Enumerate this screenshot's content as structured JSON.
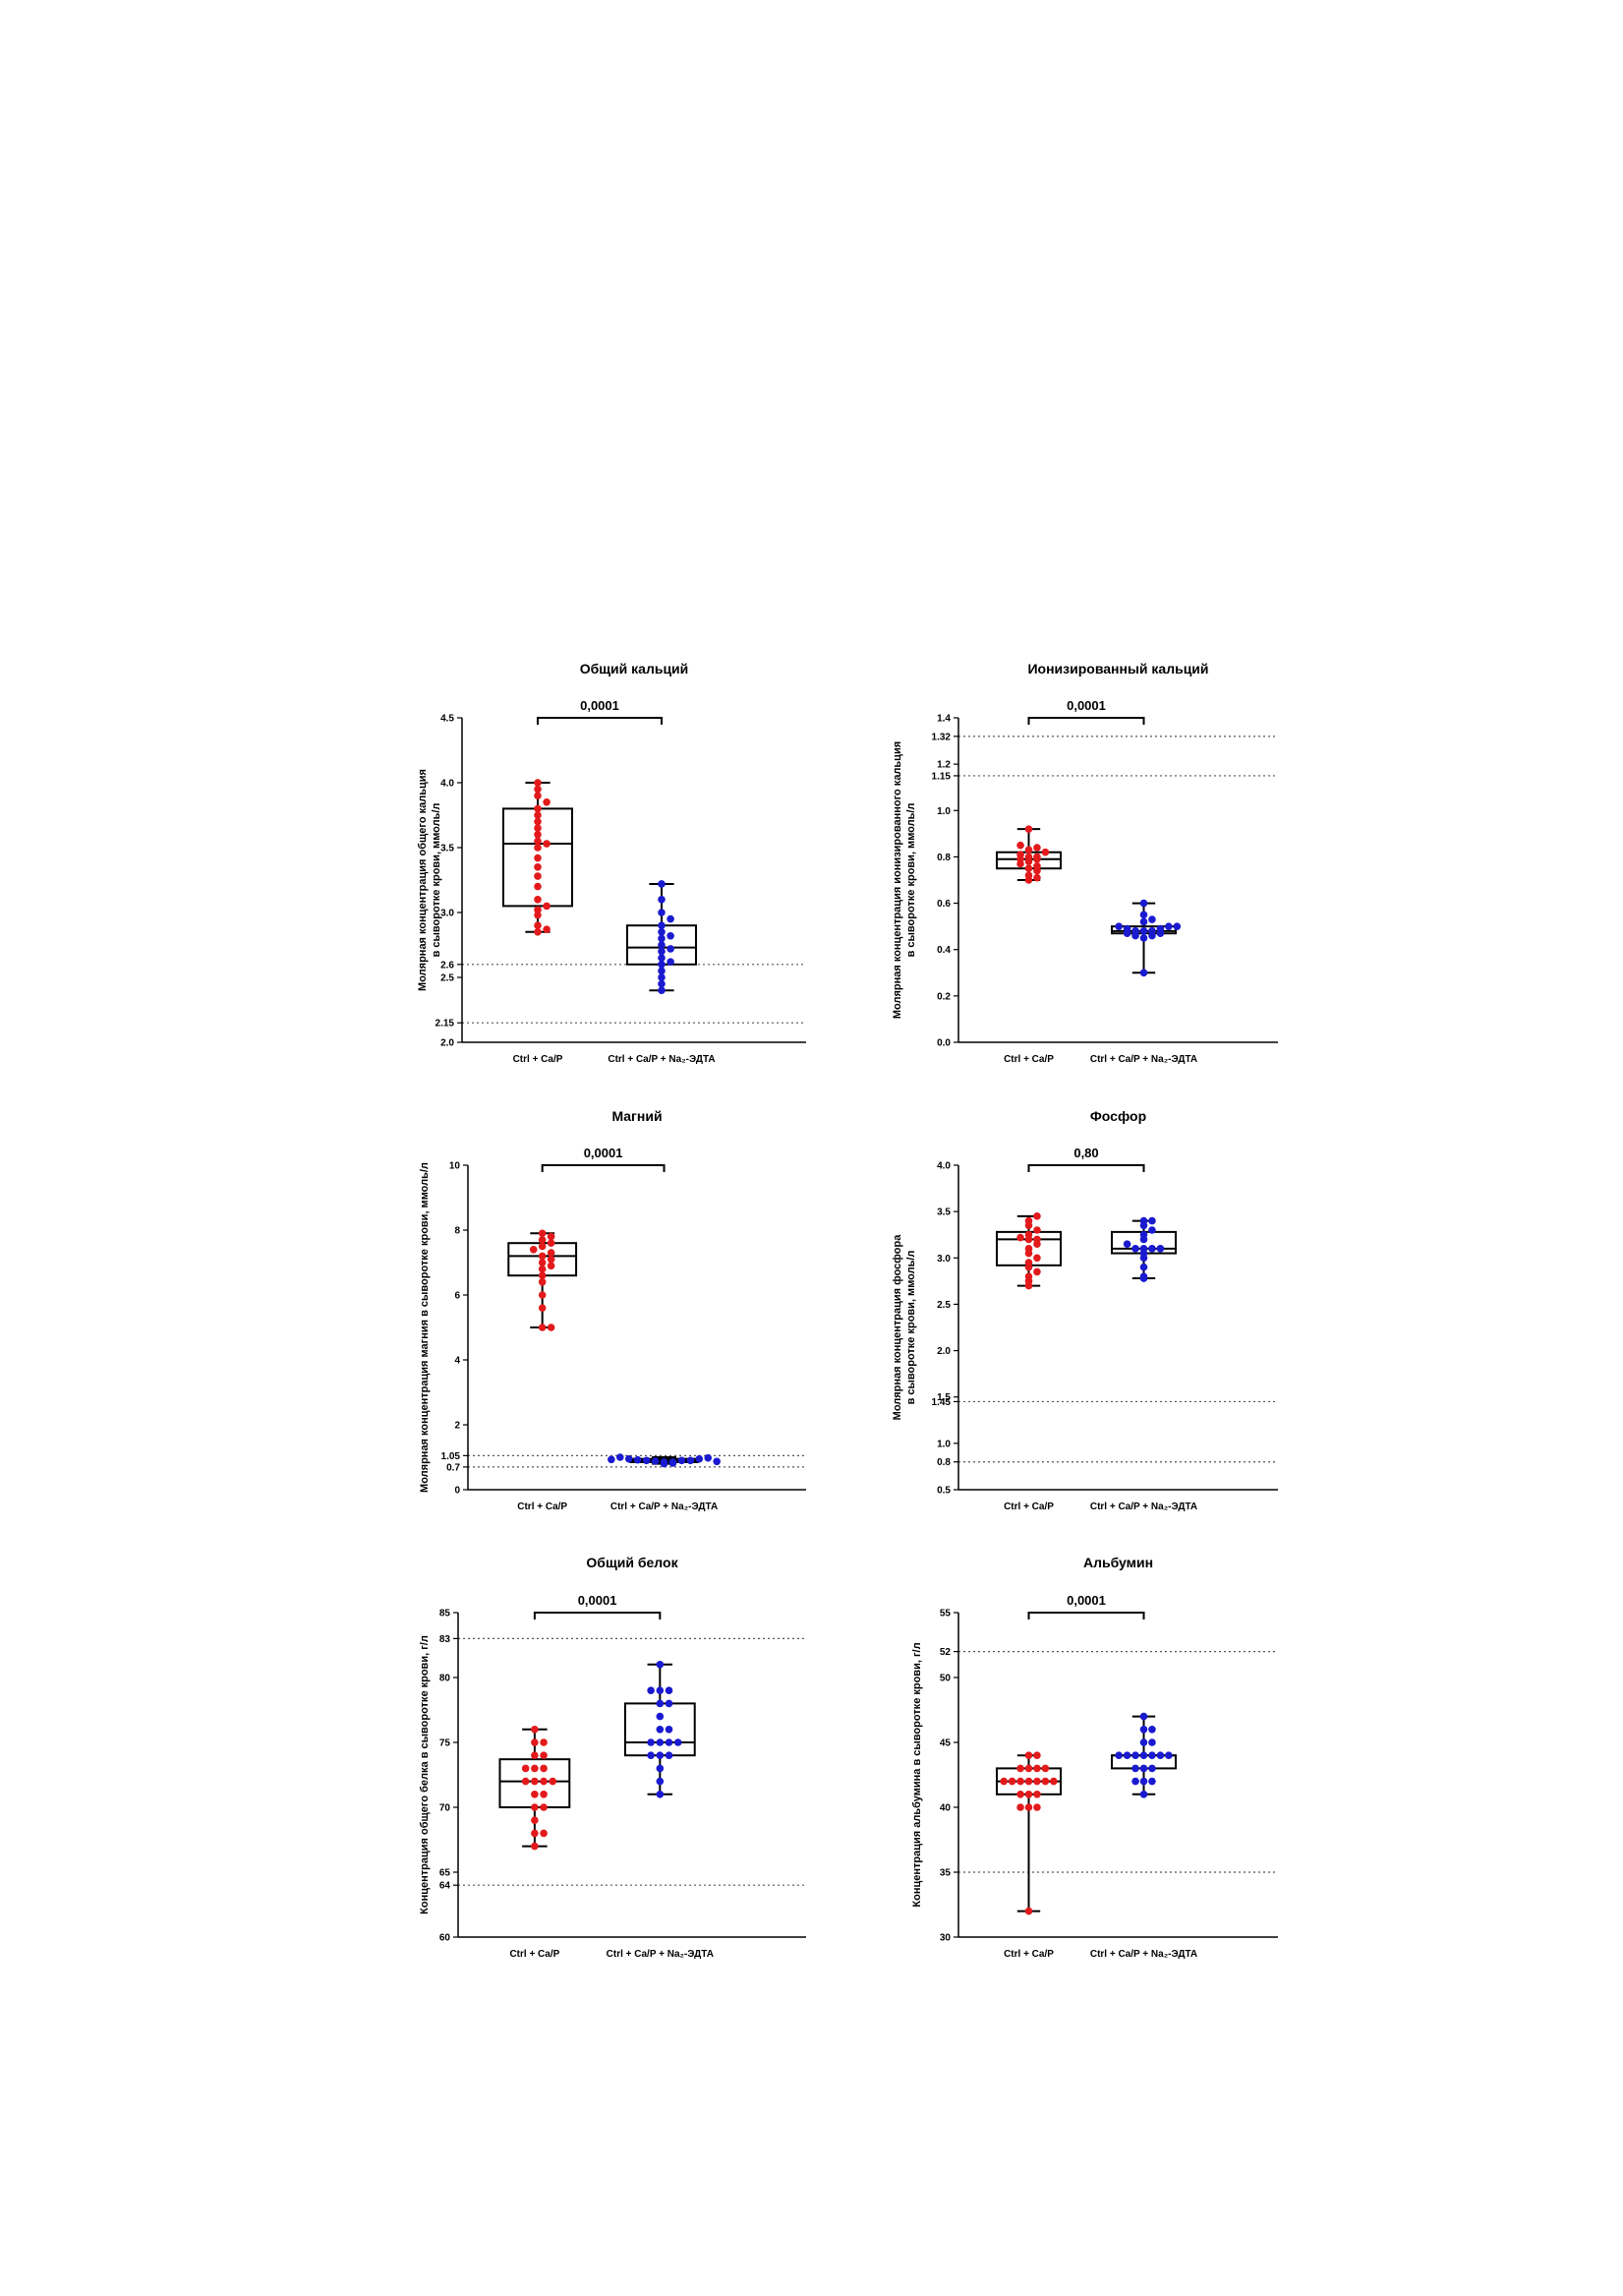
{
  "chart_data": [
    {
      "type": "box",
      "title": "Общий кальций",
      "ylabel_lines": [
        "Молярная концентрация общего кальция",
        "в сыворотке крови, ммоль/л"
      ],
      "ylim": [
        2.0,
        4.5
      ],
      "yticks": [
        "2.0",
        "2.15",
        "2.5",
        "2.6",
        "3.0",
        "3.5",
        "4.0",
        "4.5"
      ],
      "reference_lines": [
        2.15,
        2.6
      ],
      "p_value": "0,0001",
      "categories": [
        "Ctrl + Ca/P",
        "Ctrl + Ca/P + Na₂-ЭДТА"
      ],
      "series": [
        {
          "color": "#e31a1c",
          "box": {
            "min": 2.85,
            "q1": 3.05,
            "median": 3.53,
            "q3": 3.8,
            "max": 4.0
          },
          "points": [
            2.85,
            2.87,
            2.9,
            2.98,
            3.02,
            3.05,
            3.1,
            3.2,
            3.28,
            3.35,
            3.42,
            3.5,
            3.53,
            3.55,
            3.6,
            3.65,
            3.7,
            3.75,
            3.8,
            3.85,
            3.9,
            3.95,
            4.0
          ]
        },
        {
          "color": "#1a1ad0",
          "box": {
            "min": 2.4,
            "q1": 2.6,
            "median": 2.73,
            "q3": 2.9,
            "max": 3.22
          },
          "points": [
            2.4,
            2.45,
            2.5,
            2.55,
            2.6,
            2.62,
            2.65,
            2.7,
            2.72,
            2.75,
            2.8,
            2.82,
            2.85,
            2.9,
            2.95,
            3.0,
            3.1,
            3.22
          ]
        }
      ]
    },
    {
      "type": "box",
      "title": "Ионизированный кальций",
      "ylabel_lines": [
        "Молярная концентрация ионизированного кальция",
        "в сыворотке крови, ммоль/л"
      ],
      "ylim": [
        0.0,
        1.4
      ],
      "yticks": [
        "0.0",
        "0.2",
        "0.4",
        "0.6",
        "0.8",
        "1.0",
        "1.15",
        "1.2",
        "1.32",
        "1.4"
      ],
      "reference_lines": [
        1.15,
        1.32
      ],
      "p_value": "0,0001",
      "categories": [
        "Ctrl + Ca/P",
        "Ctrl + Ca/P + Na₂-ЭДТА"
      ],
      "series": [
        {
          "color": "#e31a1c",
          "box": {
            "min": 0.7,
            "q1": 0.75,
            "median": 0.79,
            "q3": 0.82,
            "max": 0.92
          },
          "points": [
            0.7,
            0.71,
            0.72,
            0.74,
            0.75,
            0.76,
            0.77,
            0.78,
            0.79,
            0.79,
            0.8,
            0.8,
            0.81,
            0.82,
            0.83,
            0.84,
            0.85,
            0.92
          ]
        },
        {
          "color": "#1a1ad0",
          "box": {
            "min": 0.3,
            "q1": 0.47,
            "median": 0.48,
            "q3": 0.5,
            "max": 0.6
          },
          "points": [
            0.3,
            0.45,
            0.46,
            0.46,
            0.47,
            0.47,
            0.48,
            0.48,
            0.48,
            0.49,
            0.49,
            0.5,
            0.5,
            0.5,
            0.52,
            0.53,
            0.55,
            0.6
          ]
        }
      ]
    },
    {
      "type": "box",
      "title": "Магний",
      "ylabel_lines": [
        "Молярная концентрация магния в сыворотке крови, ммоль/л"
      ],
      "ylim": [
        0,
        10
      ],
      "yticks": [
        "0",
        "0.7",
        "1.05",
        "2",
        "4",
        "6",
        "8",
        "10"
      ],
      "reference_lines": [
        0.7,
        1.05
      ],
      "p_value": "0,0001",
      "categories": [
        "Ctrl + Ca/P",
        "Ctrl + Ca/P + Na₂-ЭДТА"
      ],
      "series": [
        {
          "color": "#e31a1c",
          "box": {
            "min": 5.0,
            "q1": 6.6,
            "median": 7.2,
            "q3": 7.6,
            "max": 7.9
          },
          "points": [
            5.0,
            5.0,
            5.6,
            6.0,
            6.4,
            6.6,
            6.8,
            6.9,
            7.0,
            7.1,
            7.2,
            7.3,
            7.4,
            7.5,
            7.6,
            7.7,
            7.8,
            7.9
          ]
        },
        {
          "color": "#1a1ad0",
          "box": {
            "min": 0.8,
            "q1": 0.85,
            "median": 0.9,
            "q3": 0.95,
            "max": 1.0
          },
          "points": [
            0.8,
            0.82,
            0.85,
            0.85,
            0.88,
            0.9,
            0.9,
            0.9,
            0.92,
            0.95,
            0.95,
            0.98,
            1.0,
            0.87,
            0.93
          ]
        }
      ]
    },
    {
      "type": "box",
      "title": "Фосфор",
      "ylabel_lines": [
        "Молярная концентрация фосфора",
        "в сыворотке крови, ммоль/л"
      ],
      "ylim": [
        0.5,
        4.0
      ],
      "yticks": [
        "0.5",
        "0.8",
        "1.0",
        "1.45",
        "1.5",
        "2.0",
        "2.5",
        "3.0",
        "3.5",
        "4.0"
      ],
      "reference_lines": [
        0.8,
        1.45
      ],
      "p_value": "0,80",
      "categories": [
        "Ctrl + Ca/P",
        "Ctrl + Ca/P + Na₂-ЭДТА"
      ],
      "series": [
        {
          "color": "#e31a1c",
          "box": {
            "min": 2.7,
            "q1": 2.92,
            "median": 3.2,
            "q3": 3.28,
            "max": 3.45
          },
          "points": [
            2.7,
            2.75,
            2.8,
            2.85,
            2.9,
            2.95,
            3.0,
            3.05,
            3.1,
            3.15,
            3.2,
            3.2,
            3.22,
            3.25,
            3.3,
            3.35,
            3.4,
            3.45
          ]
        },
        {
          "color": "#1a1ad0",
          "box": {
            "min": 2.78,
            "q1": 3.05,
            "median": 3.1,
            "q3": 3.28,
            "max": 3.4
          },
          "points": [
            2.78,
            2.8,
            2.9,
            3.0,
            3.05,
            3.1,
            3.1,
            3.1,
            3.1,
            3.15,
            3.2,
            3.25,
            3.3,
            3.35,
            3.4,
            3.4
          ]
        }
      ]
    },
    {
      "type": "box",
      "title": "Общий белок",
      "ylabel_lines": [
        "Концентрация общего белка в сыворотке крови, г/л"
      ],
      "ylim": [
        60,
        85
      ],
      "yticks": [
        "60",
        "64",
        "65",
        "70",
        "75",
        "80",
        "83",
        "85"
      ],
      "reference_lines": [
        64,
        83
      ],
      "p_value": "0,0001",
      "categories": [
        "Ctrl + Ca/P",
        "Ctrl + Ca/P + Na₂-ЭДТА"
      ],
      "series": [
        {
          "color": "#e31a1c",
          "box": {
            "min": 67,
            "q1": 70,
            "median": 72,
            "q3": 73.7,
            "max": 76
          },
          "points": [
            67,
            68,
            68,
            69,
            70,
            70,
            71,
            71,
            72,
            72,
            72,
            72,
            73,
            73,
            73,
            74,
            74,
            75,
            75,
            76
          ]
        },
        {
          "color": "#1a1ad0",
          "box": {
            "min": 71,
            "q1": 74,
            "median": 75,
            "q3": 78,
            "max": 81
          },
          "points": [
            71,
            72,
            73,
            74,
            74,
            74,
            75,
            75,
            75,
            75,
            76,
            76,
            77,
            78,
            78,
            79,
            79,
            79,
            81
          ]
        }
      ]
    },
    {
      "type": "box",
      "title": "Альбумин",
      "ylabel_lines": [
        "Концентрация альбумина в сыворотке крови, г/л"
      ],
      "ylim": [
        30,
        55
      ],
      "yticks": [
        "30",
        "35",
        "40",
        "45",
        "50",
        "52",
        "55"
      ],
      "reference_lines": [
        35,
        52
      ],
      "p_value": "0,0001",
      "categories": [
        "Ctrl + Ca/P",
        "Ctrl + Ca/P + Na₂-ЭДТА"
      ],
      "series": [
        {
          "color": "#e31a1c",
          "box": {
            "min": 32,
            "q1": 41,
            "median": 42,
            "q3": 43,
            "max": 44
          },
          "points": [
            32,
            40,
            40,
            40,
            41,
            41,
            41,
            42,
            42,
            42,
            42,
            42,
            42,
            42,
            43,
            43,
            43,
            43,
            44,
            44
          ]
        },
        {
          "color": "#1a1ad0",
          "box": {
            "min": 41,
            "q1": 43,
            "median": 44,
            "q3": 44,
            "max": 47
          },
          "points": [
            41,
            42,
            42,
            42,
            43,
            43,
            43,
            44,
            44,
            44,
            44,
            44,
            44,
            44,
            45,
            45,
            46,
            46,
            47
          ]
        }
      ]
    }
  ]
}
